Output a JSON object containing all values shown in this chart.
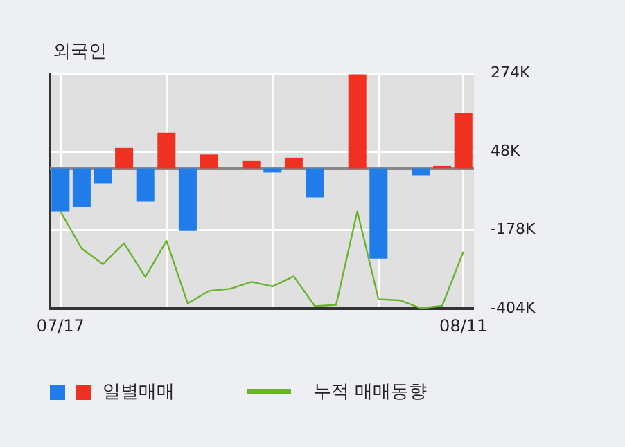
{
  "chart_data": {
    "type": "bar",
    "title": "외국인",
    "categories": [
      "07/17",
      null,
      null,
      null,
      null,
      null,
      null,
      null,
      null,
      null,
      null,
      null,
      null,
      null,
      null,
      null,
      null,
      null,
      null,
      "08/11"
    ],
    "series": [
      {
        "type": "bar",
        "name": "일별매매",
        "colors": [
          "#1f7ce8",
          "#1f7ce8",
          "#1f7ce8",
          "#f03020",
          "#1f7ce8",
          "#f03020",
          "#1f7ce8",
          "#f03020",
          "#f03020",
          "#f03020",
          "#1f7ce8",
          "#f03020",
          "#1f7ce8",
          "#f03020",
          "#f03020",
          "#1f7ce8",
          "#f03020",
          "#1f7ce8",
          "#f03020",
          "#f03020"
        ],
        "values": [
          -124000,
          -111000,
          -44000,
          59000,
          -96000,
          103000,
          -180000,
          40000,
          0,
          23000,
          -12000,
          31000,
          -84000,
          0,
          271000,
          -260000,
          0,
          -20000,
          7000,
          159000
        ]
      },
      {
        "type": "line",
        "name": "누적 매매동향",
        "color": "#6ab42d",
        "values": [
          -124000,
          -231000,
          -276000,
          -216000,
          -313000,
          -209000,
          -389000,
          -353000,
          -347000,
          -327000,
          -340000,
          -311000,
          -397000,
          -393000,
          -124000,
          -377000,
          -380000,
          -403000,
          -396000,
          -240000
        ]
      }
    ],
    "ylim": [
      -404000,
      274000
    ],
    "yticks": [
      {
        "value": 274000,
        "label": "274K"
      },
      {
        "value": 48000,
        "label": "48K"
      },
      {
        "value": -178000,
        "label": "-178K"
      },
      {
        "value": -404000,
        "label": "-404K"
      }
    ],
    "ref_lines": [
      {
        "axis": "y",
        "value": 0,
        "color": "#888888"
      }
    ],
    "grid": true,
    "legend": "bottom",
    "marker": "none",
    "line_style": "solid"
  }
}
